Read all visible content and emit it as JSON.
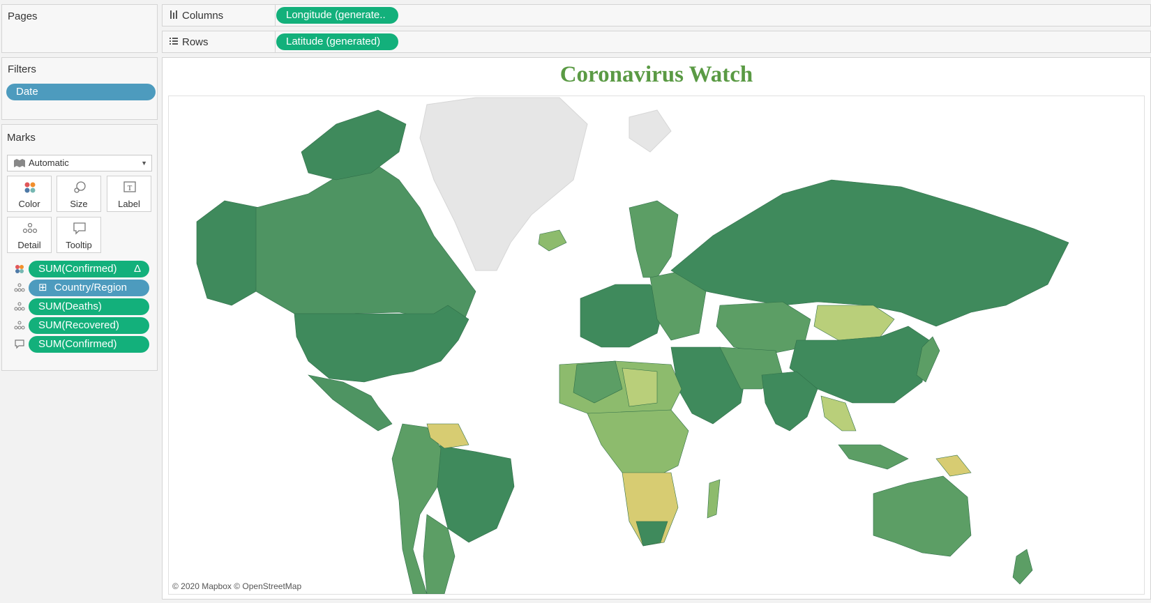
{
  "pages": {
    "title": "Pages"
  },
  "filters": {
    "title": "Filters",
    "items": [
      "Date"
    ]
  },
  "marks": {
    "title": "Marks",
    "type": "Automatic",
    "cards": [
      "Color",
      "Size",
      "Label",
      "Detail",
      "Tooltip"
    ],
    "fields": [
      {
        "icon": "color-icon",
        "label": "SUM(Confirmed)",
        "delta": "Δ",
        "color": "#13b07b"
      },
      {
        "icon": "detail-icon",
        "label": "Country/Region",
        "expand": "⊞",
        "color": "#4d9bbe"
      },
      {
        "icon": "detail-icon",
        "label": "SUM(Deaths)",
        "color": "#13b07b"
      },
      {
        "icon": "detail-icon",
        "label": "SUM(Recovered)",
        "color": "#13b07b"
      },
      {
        "icon": "tooltip-icon",
        "label": "SUM(Confirmed)",
        "color": "#13b07b"
      }
    ]
  },
  "shelves": {
    "columns": {
      "label": "Columns",
      "pill": "Longitude (generate..",
      "icon": "columns-icon"
    },
    "rows": {
      "label": "Rows",
      "pill": "Latitude (generated)",
      "icon": "rows-icon"
    }
  },
  "viz": {
    "title": "Coronavirus Watch",
    "attribution": "© 2020 Mapbox © OpenStreetMap",
    "colors": {
      "title": "#5a9a44",
      "dark": "#3f8a5c",
      "mid": "#5c9e65",
      "light": "#8dbb6d",
      "pale": "#b9cf7a",
      "yellow": "#d7cc72",
      "no_data": "#e6e6e6"
    }
  }
}
